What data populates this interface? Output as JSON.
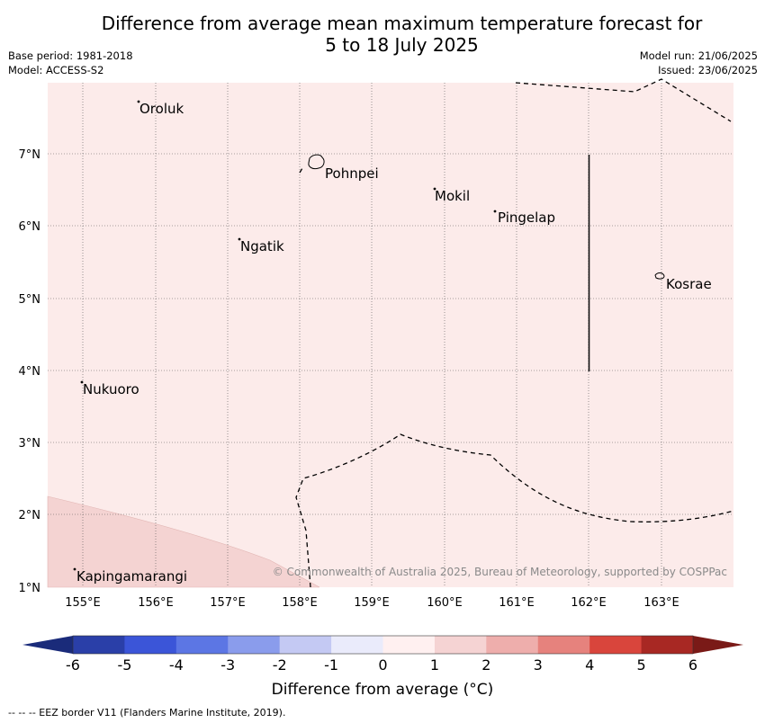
{
  "title": {
    "line1": "Difference from average mean maximum temperature forecast for",
    "line2": "5 to 18 July 2025"
  },
  "meta": {
    "base_period": "Base period: 1981-2018",
    "model": "Model: ACCESS-S2",
    "model_run": "Model run: 21/06/2025",
    "issued": "Issued: 23/06/2025"
  },
  "map": {
    "lon_ticks": [
      "155°E",
      "156°E",
      "157°E",
      "158°E",
      "159°E",
      "160°E",
      "161°E",
      "162°E",
      "163°E"
    ],
    "lat_ticks": [
      "7°N",
      "6°N",
      "5°N",
      "4°N",
      "3°N",
      "2°N",
      "1°N"
    ],
    "places": [
      {
        "name": "Oroluk"
      },
      {
        "name": "Pohnpei"
      },
      {
        "name": "Mokil"
      },
      {
        "name": "Pingelap"
      },
      {
        "name": "Ngatik"
      },
      {
        "name": "Kosrae"
      },
      {
        "name": "Nukuoro"
      },
      {
        "name": "Kapingamarangi"
      }
    ],
    "fill_colors": {
      "band_0_1": "#fcebea",
      "band_1_2": "#f4d3d2"
    },
    "copyright": "© Commonwealth of Australia 2025, Bureau of Meteorology, supported by COSPPac"
  },
  "colorbar": {
    "labels": [
      "-6",
      "-5",
      "-4",
      "-3",
      "-2",
      "-1",
      "0",
      "1",
      "2",
      "3",
      "4",
      "5",
      "6"
    ],
    "colors": [
      "#2a3fa8",
      "#3b55d8",
      "#5c76e4",
      "#8a9cec",
      "#c4c9f3",
      "#eaebfb",
      "#fff0f0",
      "#f5d3d3",
      "#eeaeac",
      "#e6827d",
      "#d9453c",
      "#a82823"
    ],
    "low_extend_color": "#1a2b7a",
    "high_extend_color": "#7a1a17",
    "title": "Difference from average (°C)"
  },
  "footer": {
    "eez_note": "--  --  -- EEZ border V11 (Flanders Marine Institute, 2019)."
  }
}
